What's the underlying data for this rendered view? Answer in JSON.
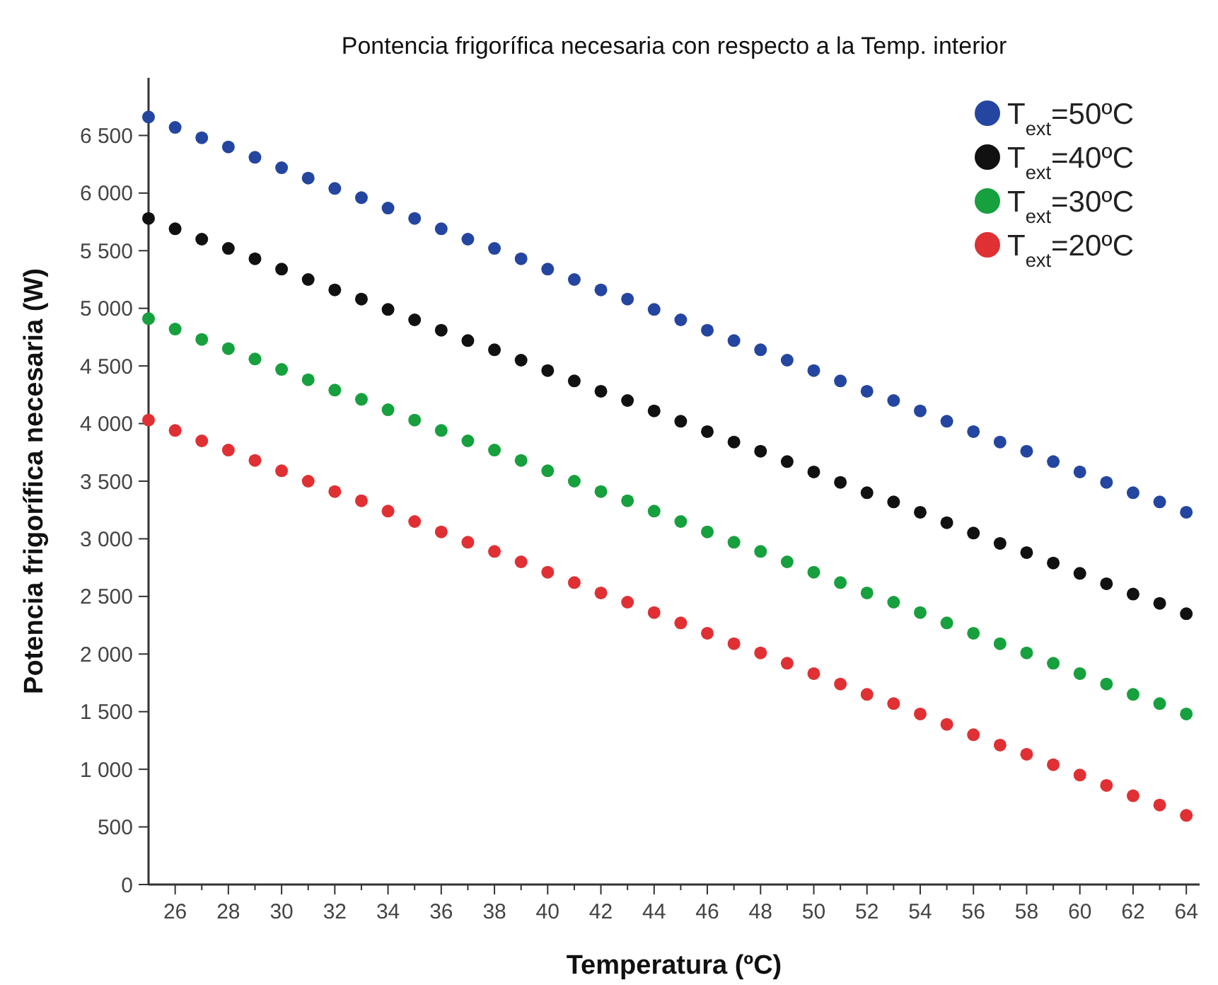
{
  "chart_data": {
    "type": "scatter",
    "title": "Pontencia frigorífica necesaria con respecto a la Temp. interior",
    "xlabel": "Temperatura (ºC)",
    "ylabel": "Potencia frigorífica necesaria (W)",
    "x": [
      25,
      26,
      27,
      28,
      29,
      30,
      31,
      32,
      33,
      34,
      35,
      36,
      37,
      38,
      39,
      40,
      41,
      42,
      43,
      44,
      45,
      46,
      47,
      48,
      49,
      50,
      51,
      52,
      53,
      54,
      55,
      56,
      57,
      58,
      59,
      60,
      61,
      62,
      63,
      64
    ],
    "series": [
      {
        "name": "T$_{ext}$=50ºC",
        "color": "#2446a0",
        "values": [
          6660,
          6570,
          6480,
          6400,
          6310,
          6220,
          6130,
          6040,
          5960,
          5870,
          5780,
          5690,
          5600,
          5520,
          5430,
          5340,
          5250,
          5160,
          5080,
          4990,
          4900,
          4810,
          4720,
          4640,
          4550,
          4460,
          4370,
          4280,
          4200,
          4110,
          4020,
          3930,
          3840,
          3760,
          3670,
          3580,
          3490,
          3400,
          3320,
          3230
        ]
      },
      {
        "name": "T$_{ext}$=40ºC",
        "color": "#111111",
        "values": [
          5780,
          5690,
          5600,
          5520,
          5430,
          5340,
          5250,
          5160,
          5080,
          4990,
          4900,
          4810,
          4720,
          4640,
          4550,
          4460,
          4370,
          4280,
          4200,
          4110,
          4020,
          3930,
          3840,
          3760,
          3670,
          3580,
          3490,
          3400,
          3320,
          3230,
          3140,
          3050,
          2960,
          2880,
          2790,
          2700,
          2610,
          2520,
          2440,
          2350
        ]
      },
      {
        "name": "T$_{ext}$=30ºC",
        "color": "#17a03e",
        "values": [
          4910,
          4820,
          4730,
          4650,
          4560,
          4470,
          4380,
          4290,
          4210,
          4120,
          4030,
          3940,
          3850,
          3770,
          3680,
          3590,
          3500,
          3410,
          3330,
          3240,
          3150,
          3060,
          2970,
          2890,
          2800,
          2710,
          2620,
          2530,
          2450,
          2360,
          2270,
          2180,
          2090,
          2010,
          1920,
          1830,
          1740,
          1650,
          1570,
          1480
        ]
      },
      {
        "name": "T$_{ext}$=20ºC",
        "color": "#e03034",
        "values": [
          4030,
          3940,
          3850,
          3770,
          3680,
          3590,
          3500,
          3410,
          3330,
          3240,
          3150,
          3060,
          2970,
          2890,
          2800,
          2710,
          2620,
          2530,
          2450,
          2360,
          2270,
          2180,
          2090,
          2010,
          1920,
          1830,
          1740,
          1650,
          1570,
          1480,
          1390,
          1300,
          1210,
          1130,
          1040,
          950,
          860,
          770,
          690,
          600
        ]
      }
    ],
    "xlim": [
      25,
      64.5
    ],
    "xticks": [
      26,
      {
        "value": 27,
        "label": null
      },
      28,
      {
        "value": 29,
        "label": null
      },
      30,
      {
        "value": 31,
        "label": null
      },
      32,
      {
        "value": 33,
        "label": null
      },
      34,
      {
        "value": 35,
        "label": null
      },
      36,
      {
        "value": 37,
        "label": null
      },
      38,
      {
        "value": 39,
        "label": null
      },
      40,
      {
        "value": 41,
        "label": null
      },
      42,
      {
        "value": 43,
        "label": null
      },
      44,
      {
        "value": 45,
        "label": null
      },
      46,
      {
        "value": 47,
        "label": null
      },
      48,
      {
        "value": 49,
        "label": null
      },
      50,
      {
        "value": 51,
        "label": null
      },
      52,
      {
        "value": 53,
        "label": null
      },
      54,
      {
        "value": 55,
        "label": null
      },
      56,
      {
        "value": 57,
        "label": null
      },
      58,
      {
        "value": 59,
        "label": null
      },
      60,
      {
        "value": 61,
        "label": null
      },
      62,
      {
        "value": 63,
        "label": null
      },
      64
    ],
    "ylim": [
      0,
      7000
    ],
    "yticks": [
      0,
      500,
      {
        "value": 1000,
        "label": "1 000"
      },
      {
        "value": 1500,
        "label": "1 500"
      },
      {
        "value": 2000,
        "label": "2 000"
      },
      {
        "value": 2500,
        "label": "2 500"
      },
      {
        "value": 3000,
        "label": "3 000"
      },
      {
        "value": 3500,
        "label": "3 500"
      },
      {
        "value": 4000,
        "label": "4 000"
      },
      {
        "value": 4500,
        "label": "4 500"
      },
      {
        "value": 5000,
        "label": "5 000"
      },
      {
        "value": 5500,
        "label": "5 500"
      },
      {
        "value": 6000,
        "label": "6 000"
      },
      {
        "value": 6500,
        "label": "6 500"
      }
    ],
    "grid": false,
    "legend": "top right",
    "marker": "circle"
  }
}
